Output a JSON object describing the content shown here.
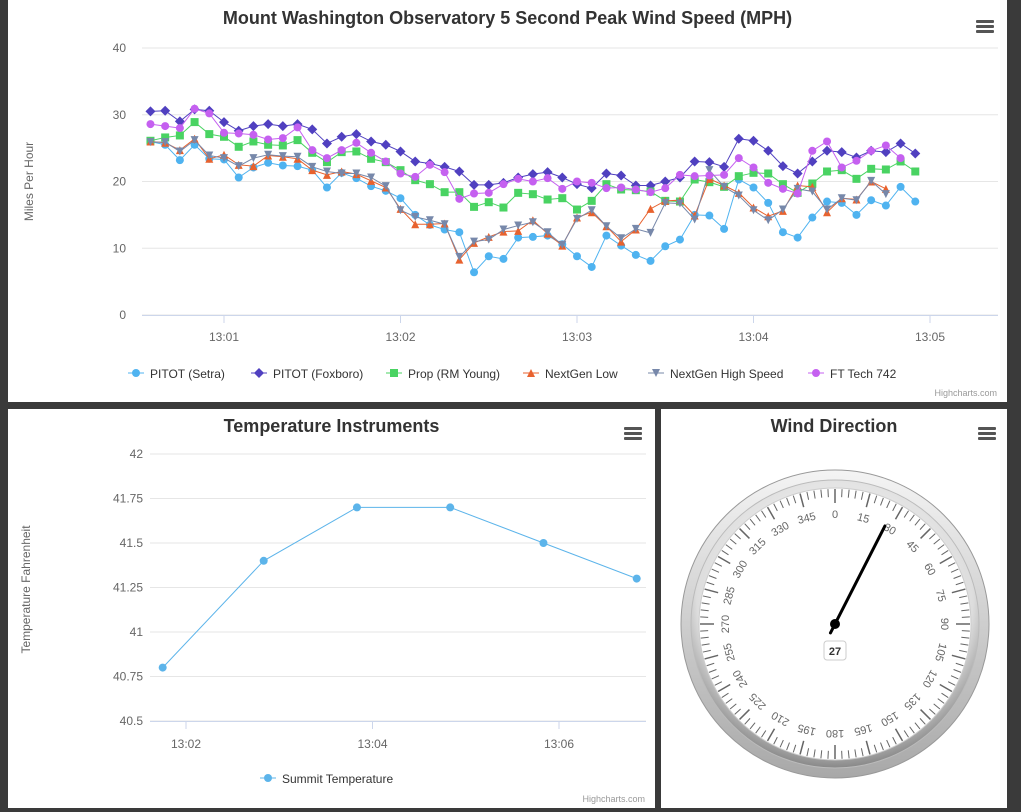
{
  "credits": "Highcharts.com",
  "chart_data": [
    {
      "type": "line",
      "title": "Mount Washington Observatory 5 Second Peak Wind Speed (MPH)",
      "ylabel": "Miles Per Hour",
      "xlabel": "",
      "ylim": [
        0,
        40
      ],
      "yticks": [
        "0",
        "10",
        "20",
        "30",
        "40"
      ],
      "xticks": [
        "13:01",
        "13:02",
        "13:03",
        "13:04",
        "13:05"
      ],
      "grid": true,
      "legend_position": "bottom",
      "x_start": "13:00:35",
      "x_step_seconds": 5,
      "series": [
        {
          "name": "PITOT (Setra)",
          "color": "#4fb3f0",
          "marker": "circle",
          "values": [
            26,
            25.5,
            23.2,
            25.5,
            23.4,
            23.3,
            20.6,
            22.1,
            22.8,
            22.4,
            22.3,
            21.7,
            19.1,
            21.3,
            20.5,
            19.3,
            18.6,
            17.5,
            15,
            13.5,
            12.8,
            12.4,
            6.4,
            8.8,
            8.4,
            11.6,
            11.7,
            11.9,
            10.6,
            8.8,
            7.2,
            11.9,
            10.4,
            9,
            8.1,
            10.3,
            11.3,
            15,
            14.9,
            12.9,
            20.3,
            19.1,
            16.8,
            12.4,
            11.6,
            14.6,
            17,
            16.8,
            15,
            17.2,
            16.4,
            19.2,
            17
          ]
        },
        {
          "name": "PITOT (Foxboro)",
          "color": "#5040c0",
          "marker": "diamond",
          "values": [
            30.5,
            30.6,
            29,
            30.8,
            30.6,
            28.9,
            27.6,
            28.3,
            28.6,
            28.3,
            28.6,
            27.8,
            25.7,
            26.7,
            27.1,
            26,
            25.5,
            24.5,
            23,
            22.7,
            22.2,
            21.5,
            19.5,
            19.5,
            19.8,
            20.6,
            21.1,
            21.4,
            20.6,
            19.6,
            19,
            21.2,
            20.9,
            19.4,
            19.4,
            20,
            20.6,
            23,
            22.9,
            22.2,
            26.4,
            26.1,
            24.6,
            22.3,
            21.2,
            23,
            24.6,
            24.4,
            23.6,
            24.6,
            24.4,
            25.7,
            24.2
          ]
        },
        {
          "name": "Prop (RM Young)",
          "color": "#49d362",
          "marker": "square",
          "values": [
            26.1,
            26.6,
            26.9,
            28.9,
            27.1,
            26.7,
            25.2,
            26,
            25.5,
            25.4,
            26.2,
            24.3,
            22.9,
            24.4,
            24.5,
            23.4,
            22.9,
            21.7,
            20.2,
            19.6,
            18.4,
            18.4,
            16.2,
            16.9,
            16.1,
            18.3,
            18.1,
            17.3,
            17.5,
            15.8,
            17.1,
            19.6,
            18.8,
            18.7,
            18.5,
            17.1,
            17,
            20.3,
            19.9,
            19.2,
            20.8,
            21.3,
            21.2,
            19.6,
            18.3,
            19.7,
            21.5,
            21.7,
            20.4,
            21.9,
            21.8,
            23,
            21.5
          ]
        },
        {
          "name": "NextGen Low",
          "color": "#e8622e",
          "marker": "triangle",
          "values": [
            26,
            25.8,
            24.7,
            26.4,
            23.4,
            24,
            22.5,
            22.3,
            23.9,
            23.7,
            23.4,
            21.7,
            21,
            21.5,
            21.1,
            20.1,
            19.1,
            15.9,
            13.6,
            13.6,
            13.7,
            8.3,
            10.8,
            11.7,
            12.5,
            12.6,
            14.2,
            12.2,
            10.4,
            14.6,
            15.4,
            13.3,
            11,
            12.8,
            15.9,
            17.1,
            17.2,
            14.9,
            20.4,
            19.4,
            18.3,
            16.1,
            14.8,
            15.6,
            19.4,
            19.2,
            15.4,
            17.5,
            17.3,
            20,
            18.9
          ]
        },
        {
          "name": "NextGen High Speed",
          "color": "#7788aa",
          "marker": "triangle-down",
          "values": [
            25.9,
            25.9,
            24.5,
            26.2,
            23.9,
            23.5,
            22.3,
            23.5,
            24,
            23.8,
            23.7,
            22.2,
            21.5,
            21.2,
            21.2,
            20.6,
            19.3,
            15.7,
            14.7,
            14.2,
            13.6,
            8.7,
            11,
            11.3,
            12.8,
            13.4,
            13.9,
            12.4,
            10.5,
            14.4,
            15.7,
            13.3,
            11.5,
            12.9,
            12.3,
            16.8,
            16.7,
            14.3,
            21.7,
            19.2,
            17.9,
            15.7,
            14.2,
            15.8,
            18.9,
            18.5,
            15.8,
            17.5,
            17.2,
            20.1,
            18.1
          ]
        },
        {
          "name": "FT Tech 742",
          "color": "#c560f0",
          "marker": "circle",
          "values": [
            28.6,
            28.3,
            28,
            30.9,
            30.2,
            27.3,
            27.2,
            27,
            26.3,
            26.5,
            28.1,
            24.7,
            23.5,
            24.7,
            25.8,
            24.3,
            23,
            21.2,
            20.7,
            22.5,
            21.4,
            17.4,
            18.2,
            18.3,
            19.6,
            20.4,
            20,
            20.5,
            18.9,
            20,
            19.8,
            19,
            19.1,
            18.8,
            18.4,
            19,
            21,
            20.8,
            20.9,
            21,
            23.5,
            22.1,
            19.8,
            18.9,
            18.2,
            24.6,
            26,
            22.1,
            23.1,
            24.6,
            25.4,
            23.5
          ]
        }
      ]
    },
    {
      "type": "line",
      "title": "Temperature Instruments",
      "ylabel": "Temperature Fahrenheit",
      "xlabel": "",
      "ylim": [
        40.5,
        42
      ],
      "yticks": [
        "40.5",
        "40.75",
        "41",
        "41.25",
        "41.5",
        "41.75",
        "42"
      ],
      "xticks": [
        "13:02",
        "13:04",
        "13:06"
      ],
      "legend_position": "bottom",
      "series": [
        {
          "name": "Summit Temperature",
          "color": "#5cb4ea",
          "x": [
            "13:01:45",
            "13:02:50",
            "13:03:50",
            "13:04:50",
            "13:05:50",
            "13:06:50"
          ],
          "values": [
            40.8,
            41.4,
            41.7,
            41.7,
            41.5,
            41.3
          ]
        }
      ]
    },
    {
      "type": "gauge",
      "title": "Wind Direction",
      "min": 0,
      "max": 360,
      "ticks": [
        "0",
        "15",
        "30",
        "45",
        "60",
        "75",
        "90",
        "105",
        "120",
        "135",
        "150",
        "165",
        "180",
        "195",
        "210",
        "225",
        "240",
        "255",
        "270",
        "285",
        "300",
        "315",
        "330",
        "345"
      ],
      "value": 27,
      "value_label": "27"
    }
  ]
}
